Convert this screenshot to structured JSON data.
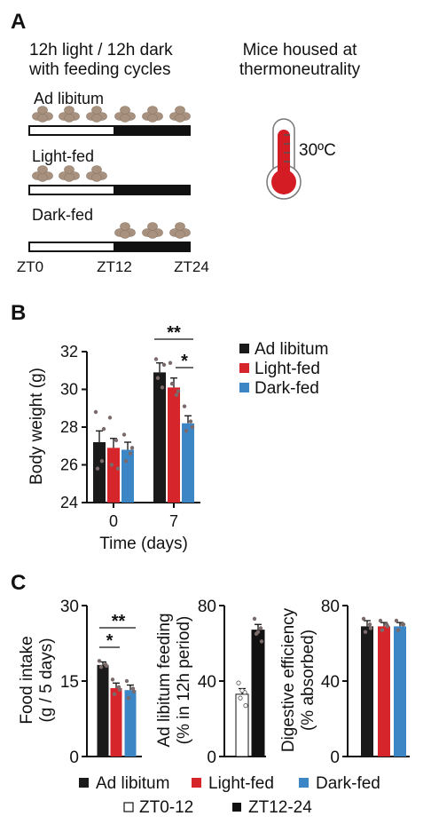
{
  "colors": {
    "ad_libitum": "#1a1a1a",
    "light_fed": "#d7262b",
    "dark_fed": "#3d86c6",
    "food": "#a8917e",
    "thermo_red": "#d41c24",
    "dot": "#7a6a6a"
  },
  "panel_a": {
    "letter": "A",
    "schedule_title_1": "12h light / 12h dark",
    "schedule_title_2": "with feeding cycles",
    "thermo_title_1": "Mice housed at",
    "thermo_title_2": "thermoneutrality",
    "temperature": "30ºC",
    "rows": [
      {
        "label": "Ad libitum",
        "food_pellets": 6,
        "feeding": "all"
      },
      {
        "label": "Light-fed",
        "food_pellets": 3,
        "feeding": "light"
      },
      {
        "label": "Dark-fed",
        "food_pellets": 3,
        "feeding": "dark"
      }
    ],
    "time_labels": [
      "ZT0",
      "ZT12",
      "ZT24"
    ]
  },
  "panel_b": {
    "letter": "B",
    "chart_data": {
      "type": "bar",
      "ylabel": "Body weight (g)",
      "xlabel": "Time (days)",
      "categories": [
        "0",
        "7"
      ],
      "ylim": [
        24,
        32
      ],
      "yticks": [
        24,
        26,
        28,
        30,
        32
      ],
      "series": [
        {
          "name": "Ad libitum",
          "values": [
            27.2,
            30.9
          ],
          "err": [
            0.6,
            0.5
          ],
          "points": [
            [
              28.8,
              26.2,
              25.8,
              27.9
            ],
            [
              31.6,
              30.1,
              30.6,
              31.3
            ]
          ]
        },
        {
          "name": "Light-fed",
          "values": [
            26.9,
            30.1
          ],
          "err": [
            0.5,
            0.5
          ],
          "points": [
            [
              28.5,
              27.3,
              26.0,
              25.8
            ],
            [
              31.4,
              29.7,
              30.3,
              29.9
            ]
          ]
        },
        {
          "name": "Dark-fed",
          "values": [
            26.8,
            28.2
          ],
          "err": [
            0.4,
            0.4
          ],
          "points": [
            [
              27.6,
              26.6,
              26.2,
              26.9
            ],
            [
              29.1,
              28.3,
              27.8,
              28.0
            ]
          ]
        }
      ],
      "significance": [
        {
          "between": [
            0,
            2
          ],
          "label": "**"
        },
        {
          "between": [
            1,
            2
          ],
          "label": "*"
        }
      ]
    }
  },
  "panel_c": {
    "letter": "C",
    "charts": [
      {
        "type": "bar",
        "ylabel_1": "Food intake",
        "ylabel_2": "(g / 5 days)",
        "ylim": [
          0,
          30
        ],
        "yticks": [
          0,
          15,
          30
        ],
        "series": [
          {
            "name": "Ad libitum",
            "value": 18.2,
            "err": 0.6,
            "points": [
              19.0,
              18.3,
              17.8,
              18.0
            ]
          },
          {
            "name": "Light-fed",
            "value": 13.6,
            "err": 1.0,
            "points": [
              15.3,
              13.8,
              12.4,
              13.3
            ]
          },
          {
            "name": "Dark-fed",
            "value": 13.2,
            "err": 1.0,
            "points": [
              15.0,
              13.5,
              11.6,
              12.9
            ]
          }
        ],
        "significance": [
          {
            "between": [
              0,
              2
            ],
            "label": "**"
          },
          {
            "between": [
              0,
              1
            ],
            "label": "*"
          }
        ]
      },
      {
        "type": "bar",
        "ylabel_1": "Ad libitum feeding",
        "ylabel_2": "(% in 12h period)",
        "ylim": [
          0,
          80
        ],
        "yticks": [
          0,
          40,
          80
        ],
        "series": [
          {
            "name": "ZT0-12",
            "value": 33,
            "err": 3,
            "points": [
              39,
              34,
              31,
              27,
              35
            ]
          },
          {
            "name": "ZT12-24",
            "value": 67,
            "err": 3,
            "points": [
              73,
              68,
              65,
              61,
              66
            ]
          }
        ]
      },
      {
        "type": "bar",
        "ylabel_1": "Digestive efficiency",
        "ylabel_2": "(% absorbed)",
        "ylim": [
          0,
          80
        ],
        "yticks": [
          0,
          40,
          80
        ],
        "series": [
          {
            "name": "Ad libitum",
            "value": 69,
            "err": 3,
            "points": [
              73,
              70,
              66,
              68
            ]
          },
          {
            "name": "Light-fed",
            "value": 69,
            "err": 2,
            "points": [
              72,
              70,
              67,
              69
            ]
          },
          {
            "name": "Dark-fed",
            "value": 69,
            "err": 2,
            "points": [
              72,
              70,
              67,
              70
            ]
          }
        ]
      }
    ],
    "legend_groups": [
      "Ad libitum",
      "Light-fed",
      "Dark-fed"
    ],
    "legend_time": [
      "ZT0-12",
      "ZT12-24"
    ]
  }
}
